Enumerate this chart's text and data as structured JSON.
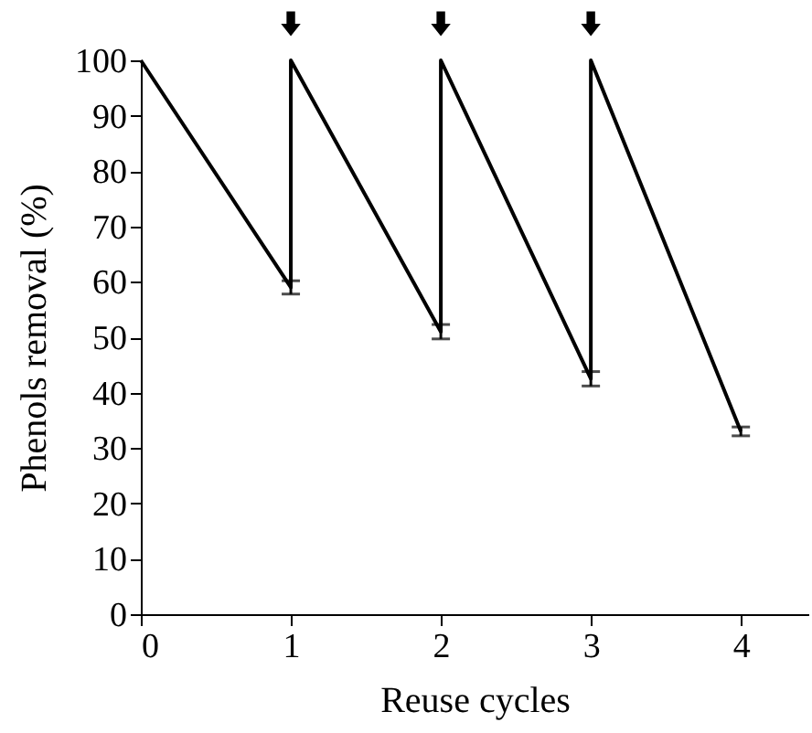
{
  "chart_data": {
    "type": "line",
    "xlabel": "Reuse cycles",
    "ylabel": "Phenols removal (%)",
    "x": [
      0,
      1,
      1,
      2,
      2,
      3,
      3,
      4
    ],
    "series": [
      {
        "color": "#000000",
        "values": [
          100,
          59,
          100,
          51,
          100,
          42.5,
          100,
          33
        ],
        "errors": [
          null,
          1.2,
          null,
          1.3,
          null,
          1.3,
          null,
          0.8
        ]
      }
    ],
    "xlim": [
      0,
      4.45
    ],
    "xticks": [
      0,
      1,
      2,
      3,
      4
    ],
    "ylim": [
      0,
      100
    ],
    "yticks": [
      0,
      10,
      20,
      30,
      40,
      50,
      60,
      70,
      80,
      90,
      100
    ],
    "grid": false,
    "marker": "none",
    "line_style": "solid"
  }
}
